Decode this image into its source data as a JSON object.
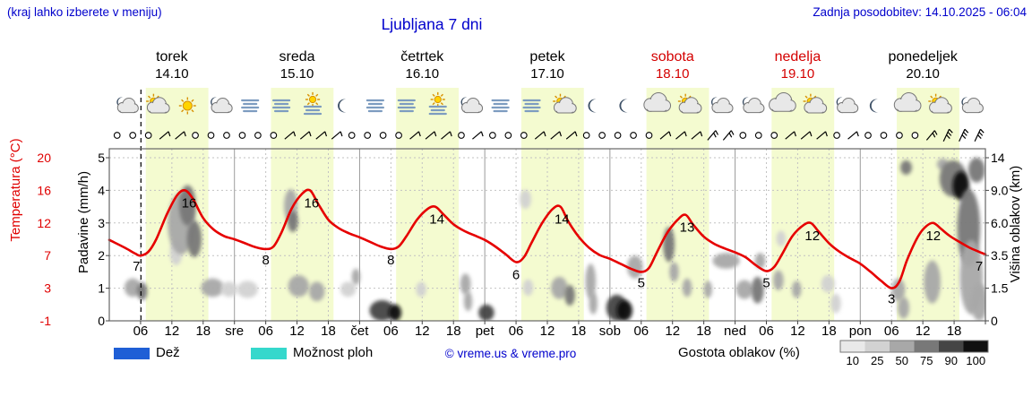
{
  "header": {
    "hint": "(kraj lahko izberete v meniju)",
    "title": "Ljubljana 7 dni",
    "updated": "Zadnja posodobitev: 14.10.2025 - 06:04"
  },
  "days": [
    {
      "name": "torek",
      "date": "14.10",
      "weekend": false
    },
    {
      "name": "sreda",
      "date": "15.10",
      "weekend": false
    },
    {
      "name": "četrtek",
      "date": "16.10",
      "weekend": false
    },
    {
      "name": "petek",
      "date": "17.10",
      "weekend": false
    },
    {
      "name": "sobota",
      "date": "18.10",
      "weekend": true
    },
    {
      "name": "nedelja",
      "date": "19.10",
      "weekend": true
    },
    {
      "name": "ponedeljek",
      "date": "20.10",
      "weekend": false
    }
  ],
  "axes": {
    "temperature": {
      "label": "Temperatura (°C)",
      "color": "#e00000",
      "ticks": [
        "20",
        "16",
        "12",
        "7",
        "3",
        "-1"
      ]
    },
    "precipitation": {
      "label": "Padavine (mm/h)",
      "ticks": [
        "5",
        "4",
        "3",
        "2",
        "1",
        "0"
      ]
    },
    "cloud_height": {
      "label": "Višina oblakov (km)",
      "ticks": [
        "14",
        "9.0",
        "6.0",
        "3.5",
        "1.5",
        "0"
      ]
    }
  },
  "x_axis": {
    "hours": [
      "06",
      "12",
      "18"
    ],
    "day_abbrevs": [
      "sre",
      "čet",
      "pet",
      "sob",
      "ned",
      "pon"
    ]
  },
  "legend": {
    "rain": "Dež",
    "rain_color": "#1f5fd6",
    "showers": "Možnost ploh",
    "showers_color": "#35d8cc",
    "copyright": "© vreme.us & vreme.pro",
    "cloud_density": "Gostota oblakov (%)",
    "scale_labels": [
      "10",
      "25",
      "50",
      "75",
      "90",
      "100"
    ],
    "scale_colors": [
      "#e9e9e9",
      "#d2d2d2",
      "#a8a8a8",
      "#787878",
      "#454545",
      "#101010"
    ]
  },
  "chart_data": {
    "type": "line",
    "title": "Ljubljana 7 dni",
    "x_unit": "hours from torek 14.10 00:00, 7 days total (0-168)",
    "temp_axis_ticks": [
      -1,
      3,
      7,
      12,
      16,
      20
    ],
    "km_axis_ticks": [
      0,
      1.5,
      3.5,
      6,
      9,
      14
    ],
    "now_hour": 6.07,
    "day_band_hours": [
      7,
      19
    ],
    "band_color": "#f4fbd0",
    "temperature_series": [
      [
        0,
        9.4
      ],
      [
        3,
        8.2
      ],
      [
        5,
        7.3
      ],
      [
        6,
        7.0
      ],
      [
        7.5,
        7.6
      ],
      [
        9,
        9.5
      ],
      [
        11,
        13.0
      ],
      [
        13,
        15.4
      ],
      [
        14.5,
        16.0
      ],
      [
        16,
        15.0
      ],
      [
        18,
        12.6
      ],
      [
        20,
        11.0
      ],
      [
        22,
        10.0
      ],
      [
        24,
        9.5
      ],
      [
        26,
        8.9
      ],
      [
        28,
        8.3
      ],
      [
        30,
        8.0
      ],
      [
        31.5,
        8.4
      ],
      [
        33,
        10.5
      ],
      [
        35,
        13.8
      ],
      [
        37,
        15.6
      ],
      [
        38.5,
        16.0
      ],
      [
        40,
        14.4
      ],
      [
        42,
        12.4
      ],
      [
        44,
        11.2
      ],
      [
        46,
        10.4
      ],
      [
        48,
        9.8
      ],
      [
        50,
        9.1
      ],
      [
        52,
        8.4
      ],
      [
        54,
        8.0
      ],
      [
        55.5,
        8.4
      ],
      [
        57,
        10.0
      ],
      [
        59,
        12.4
      ],
      [
        61,
        13.7
      ],
      [
        62.5,
        14.0
      ],
      [
        64,
        13.1
      ],
      [
        66,
        11.8
      ],
      [
        68,
        10.8
      ],
      [
        70,
        10.1
      ],
      [
        72,
        9.4
      ],
      [
        74,
        8.4
      ],
      [
        76,
        7.2
      ],
      [
        78,
        6.2
      ],
      [
        79.5,
        6.8
      ],
      [
        81,
        9.0
      ],
      [
        83,
        12.0
      ],
      [
        85,
        13.7
      ],
      [
        86.5,
        14.0
      ],
      [
        88,
        12.2
      ],
      [
        90,
        9.9
      ],
      [
        92,
        8.2
      ],
      [
        94,
        7.1
      ],
      [
        96,
        6.6
      ],
      [
        98,
        6.0
      ],
      [
        100,
        5.4
      ],
      [
        102,
        5.0
      ],
      [
        103.5,
        5.5
      ],
      [
        105,
        7.5
      ],
      [
        107,
        10.5
      ],
      [
        109,
        12.4
      ],
      [
        110.5,
        13.0
      ],
      [
        112,
        11.7
      ],
      [
        114,
        9.9
      ],
      [
        116,
        8.8
      ],
      [
        118,
        8.1
      ],
      [
        120,
        7.5
      ],
      [
        122,
        6.8
      ],
      [
        124,
        5.8
      ],
      [
        126,
        5.1
      ],
      [
        127.5,
        5.6
      ],
      [
        129,
        7.2
      ],
      [
        131,
        10.0
      ],
      [
        133,
        11.6
      ],
      [
        134.5,
        12.0
      ],
      [
        136,
        10.7
      ],
      [
        138,
        8.9
      ],
      [
        140,
        7.6
      ],
      [
        142,
        6.7
      ],
      [
        144,
        6.0
      ],
      [
        146,
        5.0
      ],
      [
        148,
        3.9
      ],
      [
        150,
        3.0
      ],
      [
        151.5,
        3.8
      ],
      [
        153,
        6.5
      ],
      [
        155,
        9.8
      ],
      [
        156.5,
        11.4
      ],
      [
        158,
        12.0
      ],
      [
        159.5,
        11.1
      ],
      [
        161,
        10.1
      ],
      [
        163,
        9.1
      ],
      [
        165,
        8.2
      ],
      [
        167,
        7.5
      ],
      [
        168,
        7.2
      ]
    ],
    "temp_labels": [
      {
        "h": 5.2,
        "v": 7,
        "kind": "min"
      },
      {
        "h": 15.3,
        "v": 16,
        "kind": "max"
      },
      {
        "h": 30,
        "v": 8,
        "kind": "min"
      },
      {
        "h": 38.8,
        "v": 16,
        "kind": "max"
      },
      {
        "h": 54,
        "v": 8,
        "kind": "min"
      },
      {
        "h": 62.8,
        "v": 14,
        "kind": "max"
      },
      {
        "h": 78,
        "v": 6,
        "kind": "min"
      },
      {
        "h": 86.8,
        "v": 14,
        "kind": "max"
      },
      {
        "h": 102,
        "v": 5,
        "kind": "min"
      },
      {
        "h": 110.8,
        "v": 13,
        "kind": "max"
      },
      {
        "h": 126,
        "v": 5,
        "kind": "min"
      },
      {
        "h": 134.8,
        "v": 12,
        "kind": "max"
      },
      {
        "h": 150,
        "v": 3,
        "kind": "min"
      },
      {
        "h": 158,
        "v": 12,
        "kind": "max"
      },
      {
        "h": 166.8,
        "v": 7,
        "kind": "min"
      }
    ],
    "cloud_blobs_format": "[hour, km, radius_hours, radius_km, density_pct]",
    "cloud_blobs": [
      [
        4.5,
        1.6,
        1.6,
        0.5,
        50
      ],
      [
        6.3,
        1.4,
        1.0,
        0.45,
        75
      ],
      [
        12.8,
        3.8,
        1.2,
        0.9,
        25
      ],
      [
        13.8,
        6.2,
        2.6,
        2.6,
        50
      ],
      [
        15,
        7.8,
        1.6,
        2.0,
        75
      ],
      [
        16.3,
        4.8,
        1.4,
        1.4,
        75
      ],
      [
        19.8,
        1.6,
        2.2,
        0.5,
        50
      ],
      [
        23,
        1.5,
        1.6,
        0.4,
        25
      ],
      [
        26.5,
        1.5,
        2.0,
        0.45,
        25
      ],
      [
        34.8,
        7.6,
        1.3,
        1.6,
        50
      ],
      [
        35.2,
        6.2,
        1.0,
        0.9,
        75
      ],
      [
        36.3,
        1.7,
        2.0,
        0.6,
        50
      ],
      [
        39.8,
        1.4,
        1.5,
        0.5,
        50
      ],
      [
        45.8,
        1.5,
        1.5,
        0.4,
        25
      ],
      [
        47.3,
        2.2,
        0.8,
        0.5,
        50
      ],
      [
        52.3,
        0.45,
        2.4,
        0.5,
        90
      ],
      [
        54.8,
        0.35,
        1.2,
        0.4,
        100
      ],
      [
        59.8,
        1.5,
        1.0,
        0.4,
        25
      ],
      [
        68.3,
        1.8,
        1.0,
        0.6,
        50
      ],
      [
        68.8,
        0.9,
        0.8,
        0.45,
        50
      ],
      [
        72.3,
        0.35,
        1.5,
        0.4,
        90
      ],
      [
        79.8,
        8.2,
        1.1,
        0.9,
        25
      ],
      [
        80.3,
        1.6,
        1.0,
        0.45,
        25
      ],
      [
        86.3,
        1.6,
        1.6,
        0.6,
        50
      ],
      [
        88.3,
        1.2,
        1.0,
        0.5,
        75
      ],
      [
        92.3,
        2.0,
        1.0,
        1.0,
        50
      ],
      [
        92.8,
        0.8,
        0.8,
        0.5,
        50
      ],
      [
        97.3,
        0.5,
        2.0,
        0.7,
        90
      ],
      [
        98.8,
        0.4,
        1.5,
        0.55,
        100
      ],
      [
        100.8,
        2.8,
        1.5,
        0.7,
        50
      ],
      [
        107.3,
        4.4,
        1.1,
        1.3,
        75
      ],
      [
        108.3,
        2.5,
        0.9,
        0.6,
        50
      ],
      [
        110.8,
        1.6,
        0.9,
        0.5,
        50
      ],
      [
        114.8,
        1.5,
        0.8,
        0.45,
        50
      ],
      [
        118.3,
        3.2,
        2.6,
        0.5,
        50
      ],
      [
        121.8,
        1.5,
        1.6,
        0.5,
        50
      ],
      [
        124.3,
        1.5,
        1.2,
        0.7,
        75
      ],
      [
        124.8,
        3.2,
        1.0,
        0.5,
        50
      ],
      [
        128.3,
        2.0,
        1.0,
        0.6,
        50
      ],
      [
        128.8,
        4.8,
        0.9,
        0.6,
        25
      ],
      [
        131.8,
        1.5,
        0.9,
        0.45,
        50
      ],
      [
        137.8,
        1.8,
        1.3,
        0.5,
        25
      ],
      [
        139.3,
        0.8,
        1.0,
        0.45,
        25
      ],
      [
        151.3,
        1.5,
        1.3,
        0.6,
        50
      ],
      [
        152.3,
        0.6,
        1.1,
        0.5,
        50
      ],
      [
        152.8,
        12.5,
        1.1,
        1.1,
        75
      ],
      [
        157.8,
        2.0,
        1.6,
        1.2,
        50
      ],
      [
        159.8,
        13.0,
        1.1,
        0.9,
        50
      ],
      [
        161.8,
        11.0,
        2.6,
        2.6,
        75
      ],
      [
        163.3,
        10.0,
        1.6,
        1.9,
        100
      ],
      [
        164.8,
        6.0,
        2.2,
        3.2,
        75
      ],
      [
        165.3,
        2.5,
        2.2,
        2.2,
        50
      ],
      [
        166.3,
        12.2,
        1.6,
        2.0,
        75
      ],
      [
        166.8,
        0.9,
        1.6,
        0.9,
        50
      ]
    ],
    "icons": [
      {
        "h": 3,
        "type": "moon-cloud"
      },
      {
        "h": 9,
        "type": "sun-cloud"
      },
      {
        "h": 15,
        "type": "sun"
      },
      {
        "h": 21,
        "type": "moon-cloud"
      },
      {
        "h": 27,
        "type": "fog"
      },
      {
        "h": 33,
        "type": "fog"
      },
      {
        "h": 39,
        "type": "sun-fog"
      },
      {
        "h": 45,
        "type": "moon"
      },
      {
        "h": 51,
        "type": "fog"
      },
      {
        "h": 57,
        "type": "fog"
      },
      {
        "h": 63,
        "type": "sun-fog"
      },
      {
        "h": 69,
        "type": "moon-cloud"
      },
      {
        "h": 75,
        "type": "fog"
      },
      {
        "h": 81,
        "type": "fog"
      },
      {
        "h": 87,
        "type": "sun-cloud"
      },
      {
        "h": 93,
        "type": "moon"
      },
      {
        "h": 99,
        "type": "moon"
      },
      {
        "h": 105,
        "type": "cloud"
      },
      {
        "h": 111,
        "type": "sun-cloud"
      },
      {
        "h": 117,
        "type": "moon-cloud"
      },
      {
        "h": 123,
        "type": "moon-cloud"
      },
      {
        "h": 129,
        "type": "cloud"
      },
      {
        "h": 135,
        "type": "sun-cloud"
      },
      {
        "h": 141,
        "type": "moon-cloud"
      },
      {
        "h": 147,
        "type": "moon"
      },
      {
        "h": 153,
        "type": "cloud"
      },
      {
        "h": 159,
        "type": "sun-cloud"
      },
      {
        "h": 165,
        "type": "moon-cloud"
      }
    ],
    "wind": {
      "start_h": 1.5,
      "step_h": 3,
      "symbols": "ooobboooooobbbboooobbbobooobbbooooobbbBBooobbbobooooBWWW"
    }
  }
}
